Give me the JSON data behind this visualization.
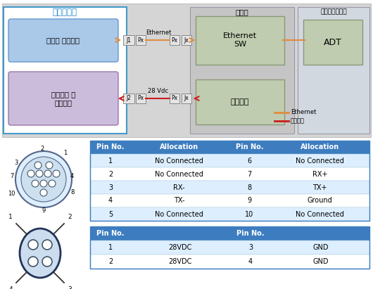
{
  "bg_top": "#d8d8d8",
  "bg_white": "#ffffff",
  "orange_color": "#e08c3c",
  "red_color": "#cc1c1c",
  "table_header_color": "#3d7dbf",
  "table_alt_color": "#ddeeff",
  "table_white_color": "#ffffff",
  "table_border_color": "#3d7dbf",
  "signal_table": {
    "headers": [
      "Pin No.",
      "Allocation",
      "Pin No.",
      "Allocation"
    ],
    "rows": [
      [
        "1",
        "No Connected",
        "6",
        "No Connected"
      ],
      [
        "2",
        "No Connected",
        "7",
        "RX+"
      ],
      [
        "3",
        "RX-",
        "8",
        "TX+"
      ],
      [
        "4",
        "TX-",
        "9",
        "Ground"
      ],
      [
        "5",
        "No Connected",
        "10",
        "No Connected"
      ]
    ]
  },
  "power_table": {
    "headers": [
      "Pin No.",
      "",
      "Pin No.",
      ""
    ],
    "rows": [
      [
        "1",
        "28VDC",
        "3",
        "GND"
      ],
      [
        "2",
        "28VDC",
        "4",
        "GND"
      ]
    ]
  },
  "labels": {
    "kisangtapjaechae": "기상탑재체",
    "tapjaechae": "탑재체 조종장치",
    "jeonwon": "전원분배 및\n통제장치",
    "bihaengche": "비행체",
    "ethernet_sw": "Ethernet\nSW",
    "bokham": "복합추진",
    "tapjae_data": "탑재데이터링크",
    "ADT": "ADT",
    "Ethernet_label": "Ethernet",
    "power_label": "28 Vdc",
    "legend_ethernet": "Ethernet",
    "legend_power": "전원공급"
  }
}
